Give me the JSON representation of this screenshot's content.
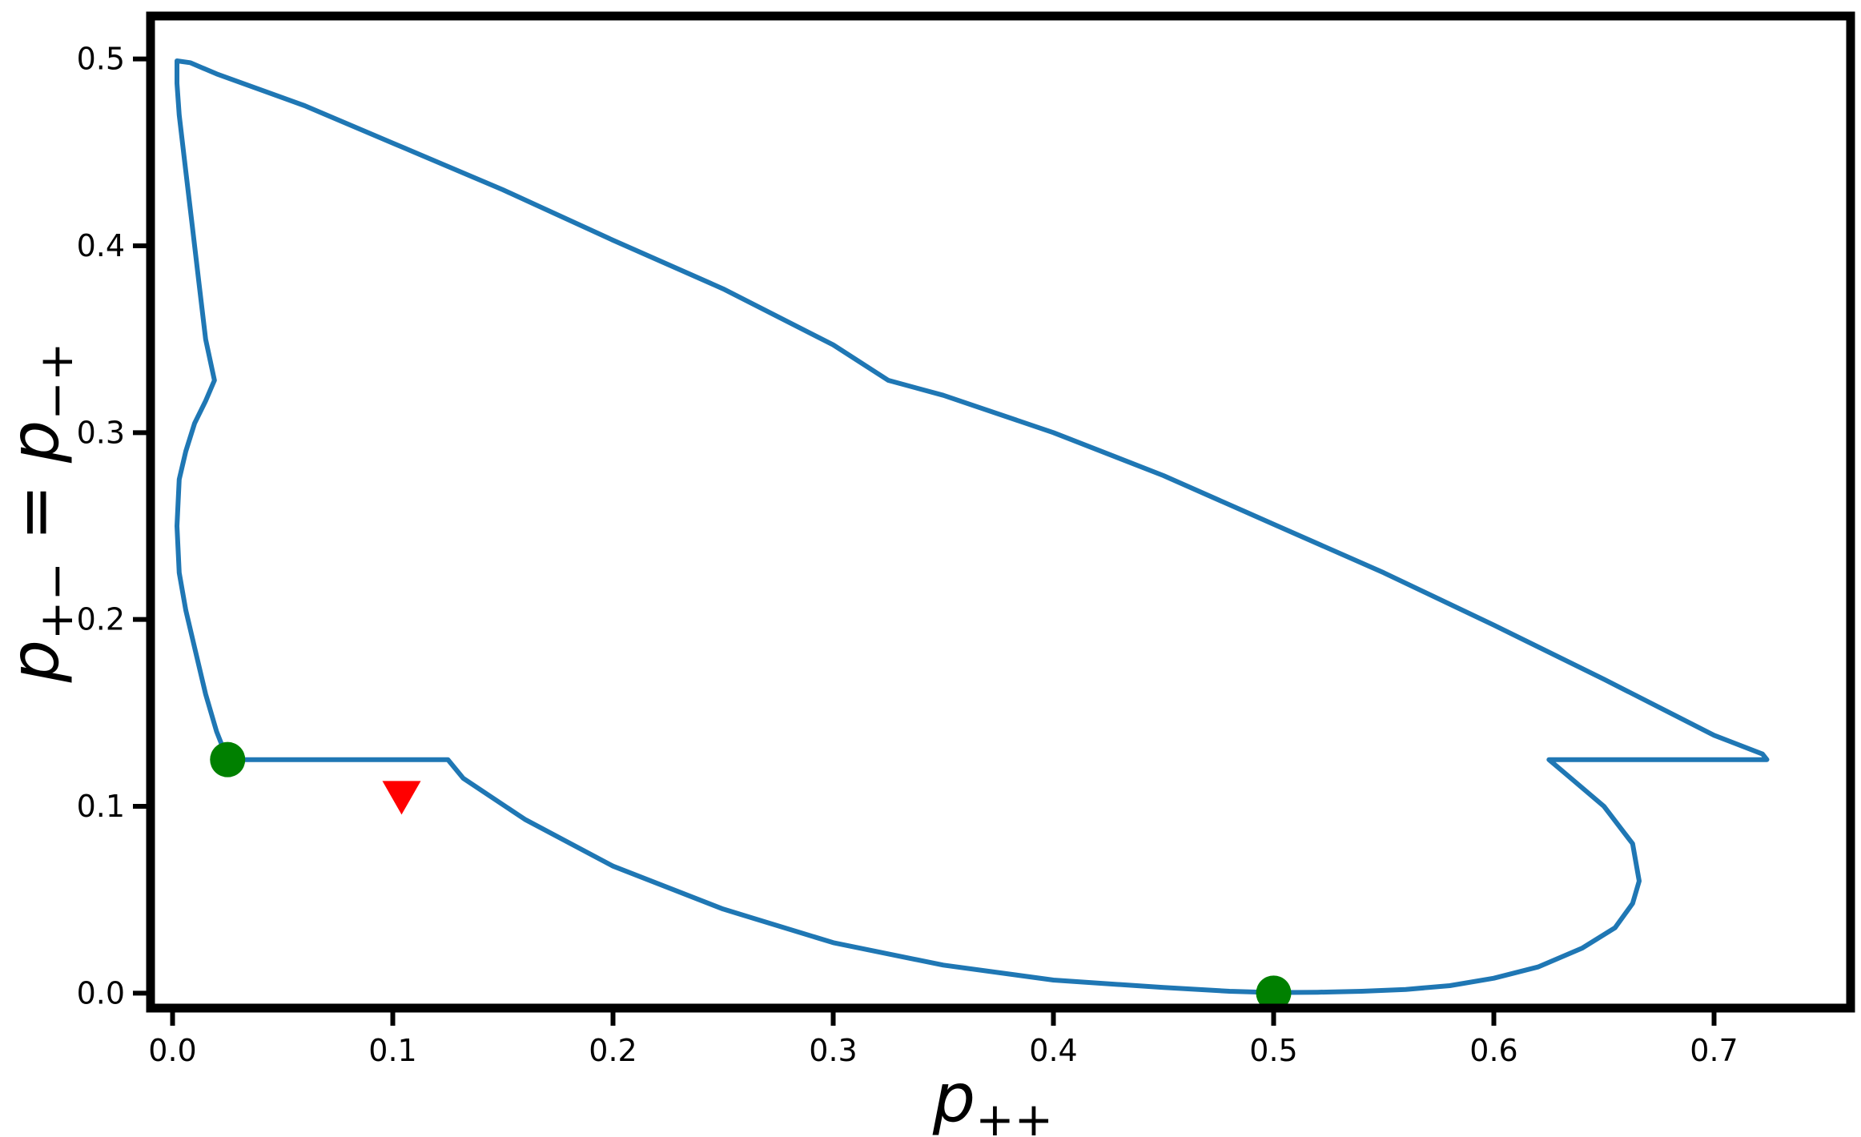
{
  "chart_data": {
    "type": "line",
    "xlabel": "p",
    "xlabel_subscript": "++",
    "ylabel_parts": [
      "p",
      "+−",
      " = ",
      "p",
      "−+"
    ],
    "xlim": [
      -0.01,
      0.762
    ],
    "ylim": [
      -0.008,
      0.523
    ],
    "xticks": [
      0.0,
      0.1,
      0.2,
      0.3,
      0.4,
      0.5,
      0.6,
      0.7
    ],
    "xtick_labels": [
      "0.0",
      "0.1",
      "0.2",
      "0.3",
      "0.4",
      "0.5",
      "0.6",
      "0.7"
    ],
    "yticks": [
      0.0,
      0.1,
      0.2,
      0.3,
      0.4,
      0.5
    ],
    "ytick_labels": [
      "0.0",
      "0.1",
      "0.2",
      "0.3",
      "0.4",
      "0.5"
    ],
    "grid": false,
    "colors": {
      "line": "#1f77b4",
      "circle": "#008000",
      "triangle": "#ff0000",
      "frame": "#000000"
    },
    "series": [
      {
        "type": "line",
        "x": [
          0.025,
          0.02,
          0.015,
          0.01,
          0.006,
          0.003,
          0.002,
          0.003,
          0.006,
          0.01,
          0.015,
          0.019,
          0.015,
          0.012,
          0.009,
          0.006,
          0.003,
          0.002,
          0.002,
          0.008,
          0.02,
          0.06,
          0.1,
          0.15,
          0.2,
          0.25,
          0.3,
          0.325,
          0.35,
          0.4,
          0.45,
          0.5,
          0.55,
          0.6,
          0.65,
          0.7,
          0.722,
          0.724,
          0.7,
          0.66,
          0.625,
          0.635,
          0.65,
          0.663,
          0.666,
          0.663,
          0.655,
          0.64,
          0.62,
          0.6,
          0.58,
          0.56,
          0.54,
          0.52,
          0.5,
          0.48,
          0.45,
          0.4,
          0.35,
          0.3,
          0.25,
          0.2,
          0.16,
          0.132,
          0.125,
          0.1,
          0.06,
          0.025
        ],
        "y": [
          0.125,
          0.14,
          0.16,
          0.185,
          0.205,
          0.225,
          0.25,
          0.275,
          0.29,
          0.305,
          0.317,
          0.328,
          0.35,
          0.38,
          0.41,
          0.44,
          0.47,
          0.487,
          0.499,
          0.498,
          0.492,
          0.475,
          0.455,
          0.43,
          0.403,
          0.377,
          0.347,
          0.328,
          0.32,
          0.3,
          0.277,
          0.251,
          0.225,
          0.197,
          0.168,
          0.138,
          0.128,
          0.125,
          0.125,
          0.125,
          0.125,
          0.115,
          0.1,
          0.08,
          0.06,
          0.048,
          0.035,
          0.024,
          0.014,
          0.008,
          0.004,
          0.002,
          0.001,
          0.0005,
          0.0003,
          0.001,
          0.003,
          0.007,
          0.015,
          0.027,
          0.045,
          0.068,
          0.093,
          0.115,
          0.125,
          0.125,
          0.125,
          0.125
        ]
      },
      {
        "type": "scatter",
        "marker": "circle",
        "x": [
          0.025,
          0.5
        ],
        "y": [
          0.125,
          0.0
        ]
      },
      {
        "type": "scatter",
        "marker": "triangle-down",
        "x": [
          0.104
        ],
        "y": [
          0.105
        ]
      }
    ]
  }
}
